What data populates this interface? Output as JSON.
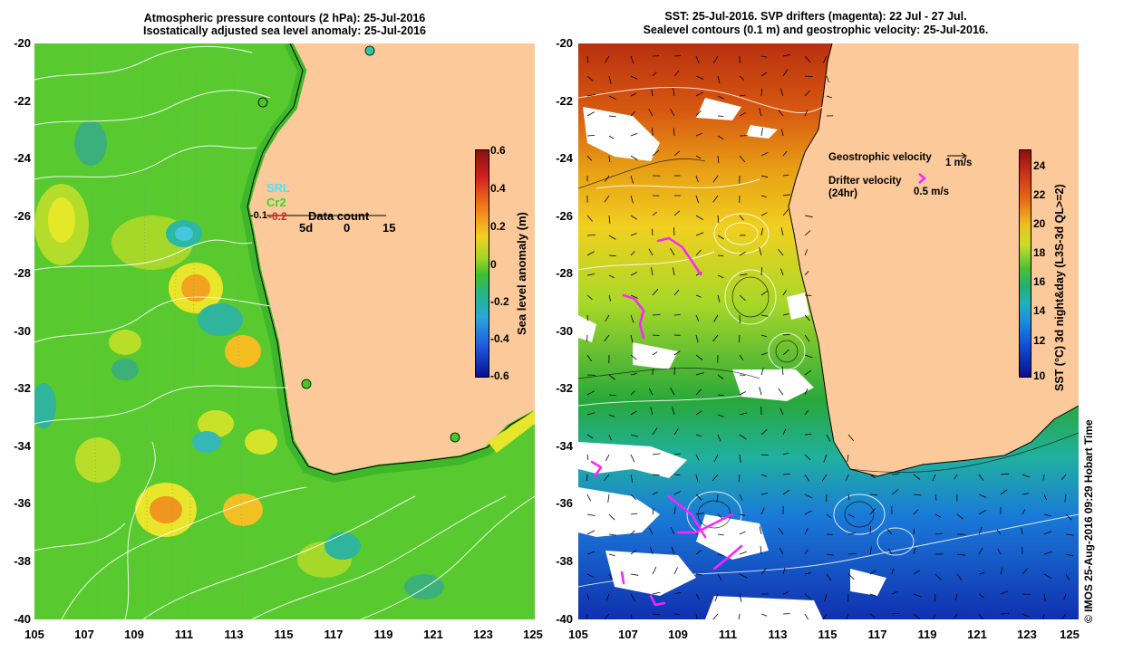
{
  "left_panel": {
    "title_line1": "Atmospheric pressure contours (2 hPa): 25-Jul-2016",
    "title_line2": "Isostatically adjusted sea level anomaly: 25-Jul-2016",
    "colorbar_label": "Sea level anomaly (m)",
    "colorbar_ticks": [
      "0.6",
      "0.4",
      "0.2",
      "0",
      "-0.2",
      "-0.4",
      "-0.6"
    ],
    "station_labels": {
      "srl": "SRL",
      "cr2": "Cr2",
      "value": "-0.2",
      "item1": "-0.1"
    },
    "data_count": {
      "title": "Data count",
      "labels": [
        "5d",
        "0",
        "15"
      ]
    }
  },
  "right_panel": {
    "title_line1": "SST: 25-Jul-2016. SVP drifters (magenta): 22 Jul - 27 Jul.",
    "title_line2": "Sealevel contours (0.1 m) and geostrophic velocity: 25-Jul-2016.",
    "colorbar_label": "SST (°C) 3d night&day (L3S-3d QL>=2)",
    "colorbar_ticks": [
      "24",
      "22",
      "20",
      "18",
      "16",
      "14",
      "12",
      "10"
    ],
    "legend": {
      "geo_label": "Geostrophic velocity",
      "geo_value": "1 m/s",
      "drifter_label": "Drifter velocity",
      "drifter_sub": "(24hr)",
      "drifter_value": "0.5 m/s"
    },
    "copyright": "© IMOS 25-Aug-2016 09:29 Hobart Time"
  },
  "axes": {
    "lat_labels": [
      "-20",
      "-22",
      "-24",
      "-26",
      "-28",
      "-30",
      "-32",
      "-34",
      "-36",
      "-38",
      "-40"
    ],
    "lon_labels": [
      "105",
      "107",
      "109",
      "111",
      "113",
      "115",
      "117",
      "119",
      "121",
      "123",
      "125"
    ]
  },
  "colors": {
    "land": "#fbc99a",
    "left_ocean": "#56c82b",
    "right_ocean_mid": "#2fa844",
    "drifter": "#ff22ff"
  }
}
